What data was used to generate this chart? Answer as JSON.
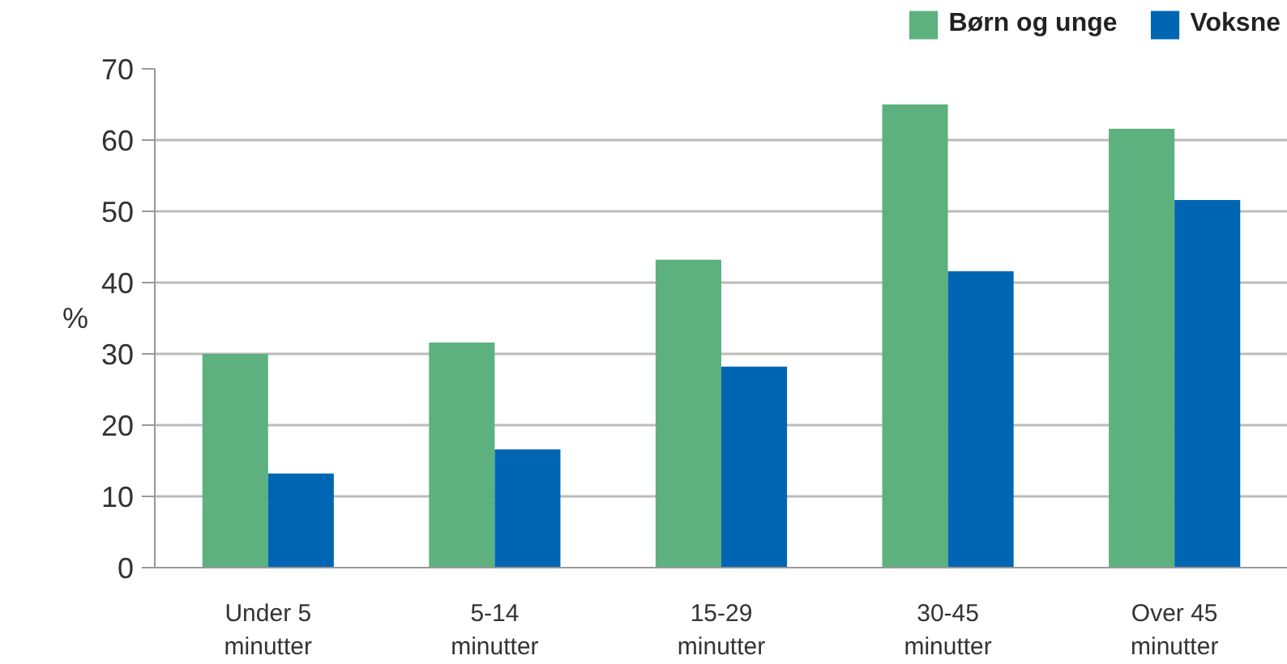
{
  "chart_data": {
    "type": "bar",
    "ylabel": "%",
    "categories": [
      "Under 5\nminutter",
      "5-14\nminutter",
      "15-29\nminutter",
      "30-45\nminutter",
      "Over 45\nminutter"
    ],
    "series": [
      {
        "name": "Børn og unge",
        "color": "#5db17f",
        "values": [
          30.0,
          31.6,
          43.2,
          65.0,
          61.6
        ]
      },
      {
        "name": "Voksne",
        "color": "#0066b3",
        "values": [
          13.2,
          16.6,
          28.2,
          41.6,
          51.6
        ]
      }
    ],
    "ylim": [
      0,
      70
    ],
    "yticks": [
      0,
      10,
      20,
      30,
      40,
      50,
      60,
      70
    ],
    "grid": "y",
    "legend": "top right"
  }
}
